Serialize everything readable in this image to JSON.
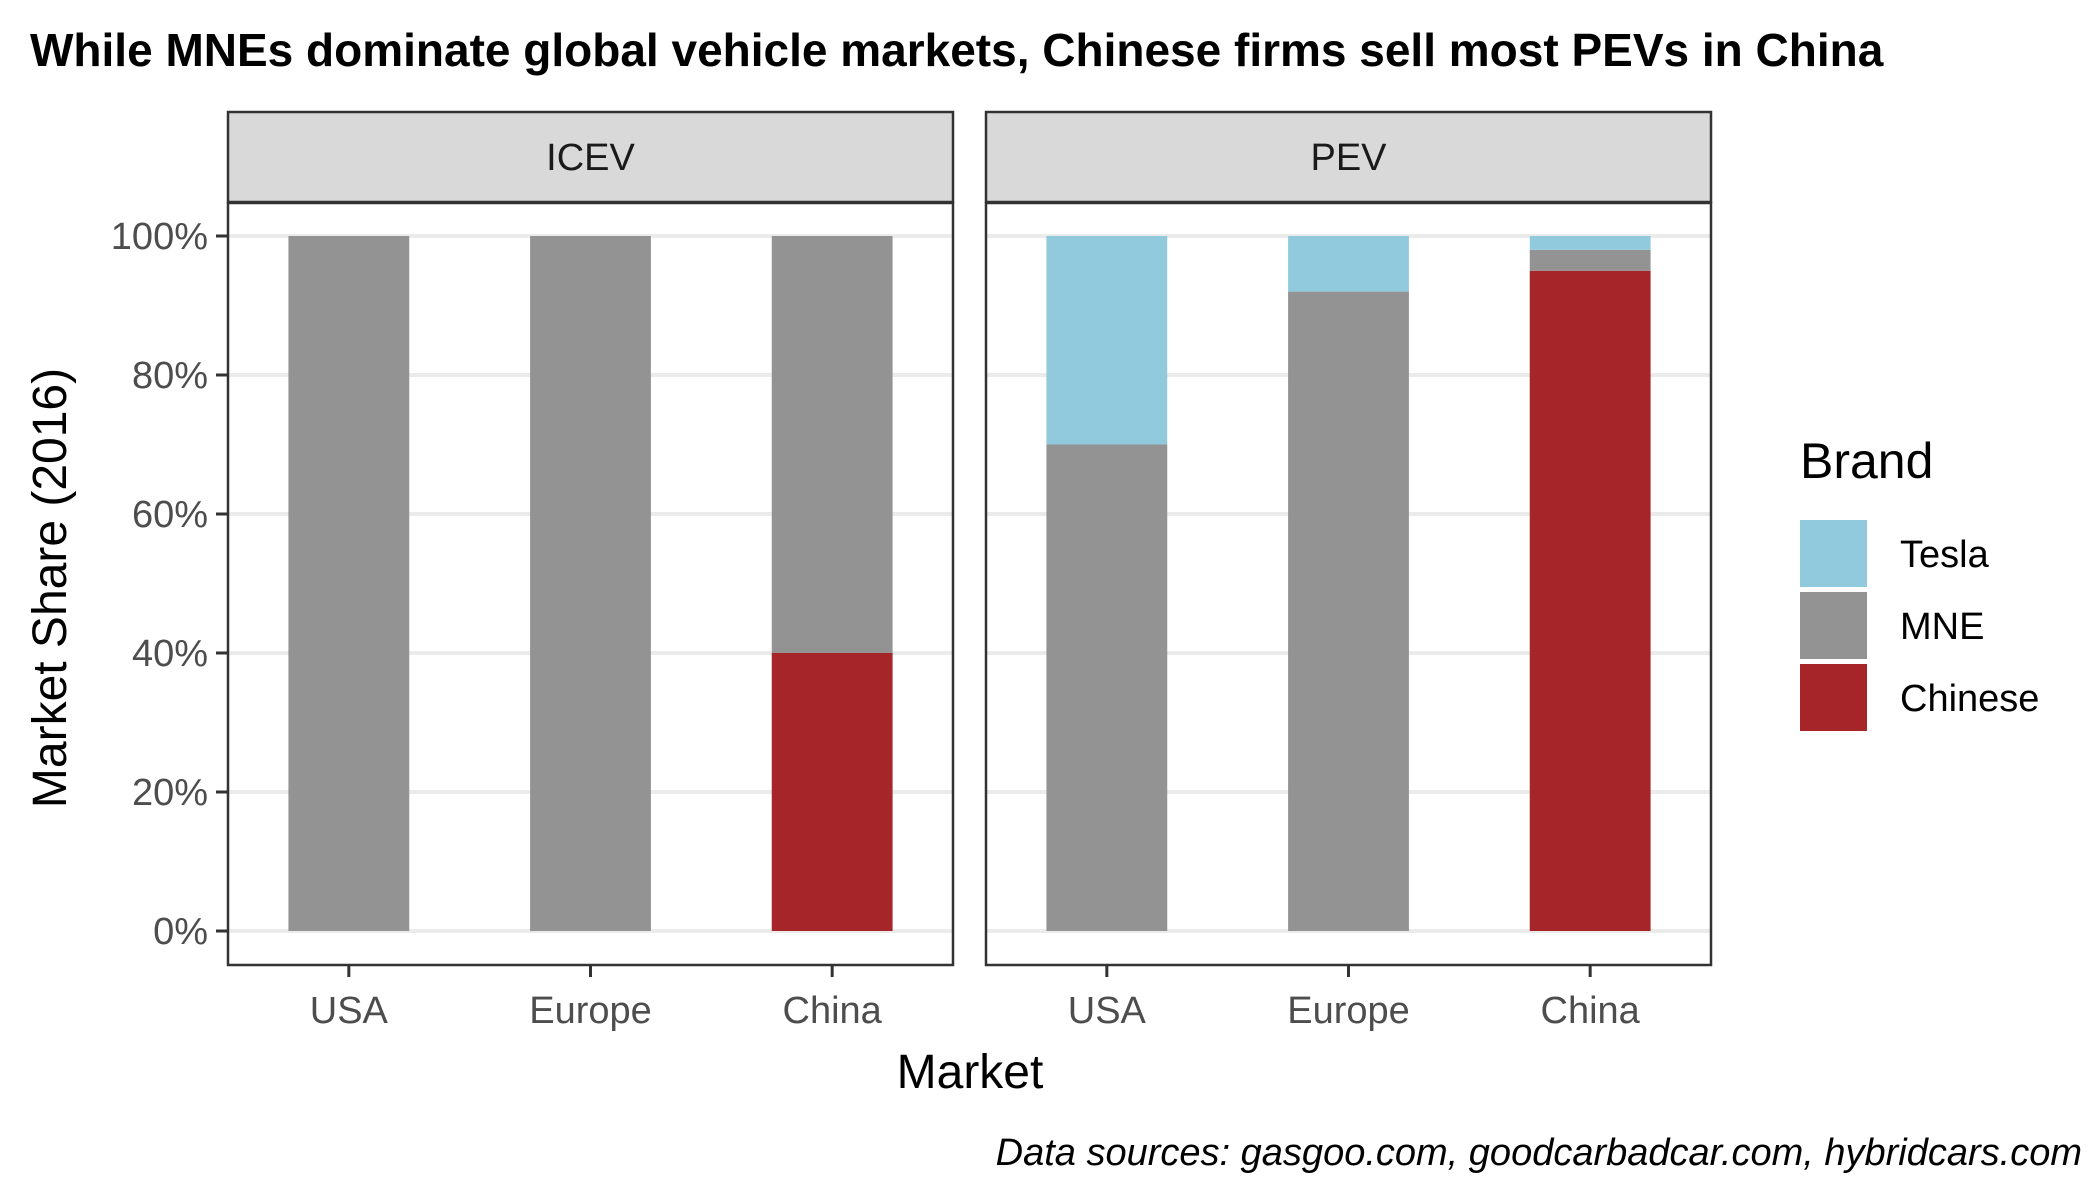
{
  "chart_data": {
    "type": "bar",
    "stacked": true,
    "title": "While MNEs dominate global vehicle markets, Chinese firms sell most PEVs in China",
    "xlabel": "Market",
    "ylabel": "Market Share (2016)",
    "caption": "Data sources: gasgoo.com, goodcarbadcar.com, hybridcars.com",
    "categories": [
      "USA",
      "Europe",
      "China"
    ],
    "ylim": [
      0,
      1
    ],
    "yticks": [
      0,
      0.2,
      0.4,
      0.6,
      0.8,
      1.0
    ],
    "ytick_labels": [
      "0%",
      "20%",
      "40%",
      "60%",
      "80%",
      "100%"
    ],
    "grid": true,
    "legend": {
      "title": "Brand",
      "placement": "right",
      "entries": [
        "Tesla",
        "MNE",
        "Chinese"
      ]
    },
    "colors": {
      "Tesla": "#92cadd",
      "MNE": "#939393",
      "Chinese": "#a52528"
    },
    "facets": [
      {
        "label": "ICEV",
        "series": [
          {
            "name": "Chinese",
            "values": [
              0,
              0,
              0.4
            ]
          },
          {
            "name": "MNE",
            "values": [
              1.0,
              1.0,
              0.6
            ]
          },
          {
            "name": "Tesla",
            "values": [
              0,
              0,
              0
            ]
          }
        ]
      },
      {
        "label": "PEV",
        "series": [
          {
            "name": "Chinese",
            "values": [
              0,
              0,
              0.95
            ]
          },
          {
            "name": "MNE",
            "values": [
              0.7,
              0.92,
              0.03
            ]
          },
          {
            "name": "Tesla",
            "values": [
              0.3,
              0.08,
              0.02
            ]
          }
        ]
      }
    ]
  }
}
